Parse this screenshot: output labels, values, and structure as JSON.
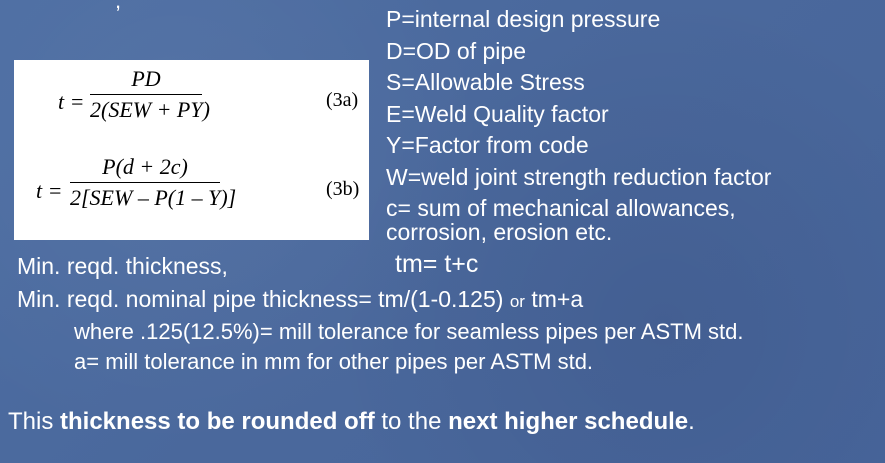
{
  "top_fragment": ",",
  "definitions": [
    "P=internal design pressure",
    "D=OD of pipe",
    "S=Allowable Stress",
    "E=Weld Quality factor",
    "Y=Factor from code",
    "W=weld joint strength reduction factor",
    "c= sum of mechanical allowances,",
    "corrosion, erosion etc."
  ],
  "equations": {
    "eq_3a": {
      "lhs": "t =",
      "numerator": "PD",
      "denominator": "2(SEW + PY)",
      "tag": "(3a)"
    },
    "eq_3b": {
      "lhs": "t =",
      "numerator": "P(d + 2c)",
      "denominator": "2[SEW – P(1 – Y)]",
      "tag": "(3b)"
    }
  },
  "min_thickness": {
    "label": "Min. reqd. thickness,",
    "formula": "tm= t+c"
  },
  "nominal_thickness": {
    "label": "Min. reqd. nominal pipe thickness= tm/(1-0.125)",
    "or": "or",
    "alt": "tm+a",
    "where_1": "where .125(12.5%)= mill tolerance for seamless pipes per ASTM std.",
    "where_2": "a= mill tolerance in mm for other pipes per ASTM std."
  },
  "conclusion": {
    "part1": "This ",
    "part2": "thickness to be rounded off",
    "part3": " to the ",
    "part4": "next higher schedule",
    "part5": "."
  }
}
